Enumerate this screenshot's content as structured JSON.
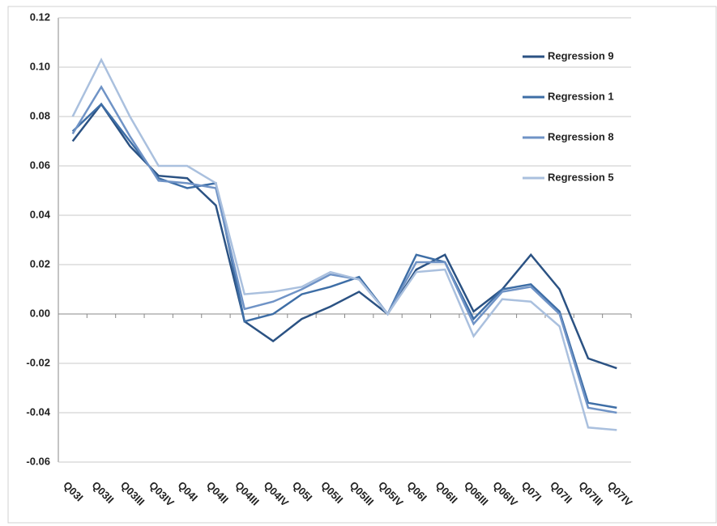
{
  "chart_data": {
    "type": "line",
    "categories": [
      "Q03I",
      "Q03II",
      "Q03III",
      "Q03IV",
      "Q04I",
      "Q04II",
      "Q04III",
      "Q04IV",
      "Q05I",
      "Q05II",
      "Q05III",
      "Q05IV",
      "Q06I",
      "Q06II",
      "Q06III",
      "Q06IV",
      "Q07I",
      "Q07II",
      "Q07III",
      "Q07IV"
    ],
    "series": [
      {
        "name": "Regression 9",
        "color": "#2b5283",
        "values": [
          0.07,
          0.085,
          0.068,
          0.056,
          0.055,
          0.044,
          -0.003,
          -0.011,
          -0.002,
          0.003,
          0.009,
          0.0,
          0.018,
          0.024,
          0.001,
          0.01,
          0.024,
          0.01,
          -0.018,
          -0.022
        ]
      },
      {
        "name": "Regression 1",
        "color": "#3e6ea6",
        "values": [
          0.074,
          0.085,
          0.07,
          0.055,
          0.051,
          0.053,
          -0.003,
          0.0,
          0.008,
          0.011,
          0.015,
          0.0,
          0.024,
          0.021,
          -0.002,
          0.01,
          0.012,
          0.001,
          -0.036,
          -0.038
        ]
      },
      {
        "name": "Regression 8",
        "color": "#6f93c6",
        "values": [
          0.073,
          0.092,
          0.072,
          0.054,
          0.053,
          0.051,
          0.002,
          0.005,
          0.01,
          0.016,
          0.014,
          0.0,
          0.021,
          0.021,
          -0.004,
          0.009,
          0.011,
          0.0,
          -0.038,
          -0.04
        ]
      },
      {
        "name": "Regression 5",
        "color": "#aac0de",
        "values": [
          0.08,
          0.103,
          0.08,
          0.06,
          0.06,
          0.053,
          0.008,
          0.009,
          0.011,
          0.017,
          0.014,
          0.0,
          0.017,
          0.018,
          -0.009,
          0.006,
          0.005,
          -0.005,
          -0.046,
          -0.047
        ]
      }
    ],
    "ylim": [
      -0.06,
      0.12
    ],
    "yticks": [
      -0.06,
      -0.04,
      -0.02,
      {
        "value": 0,
        "label": "0.00"
      },
      0.02,
      0.04,
      0.06,
      0.08,
      {
        "value": 0.1,
        "label": "0.10"
      },
      0.12
    ],
    "grid": true,
    "legend": "right"
  }
}
